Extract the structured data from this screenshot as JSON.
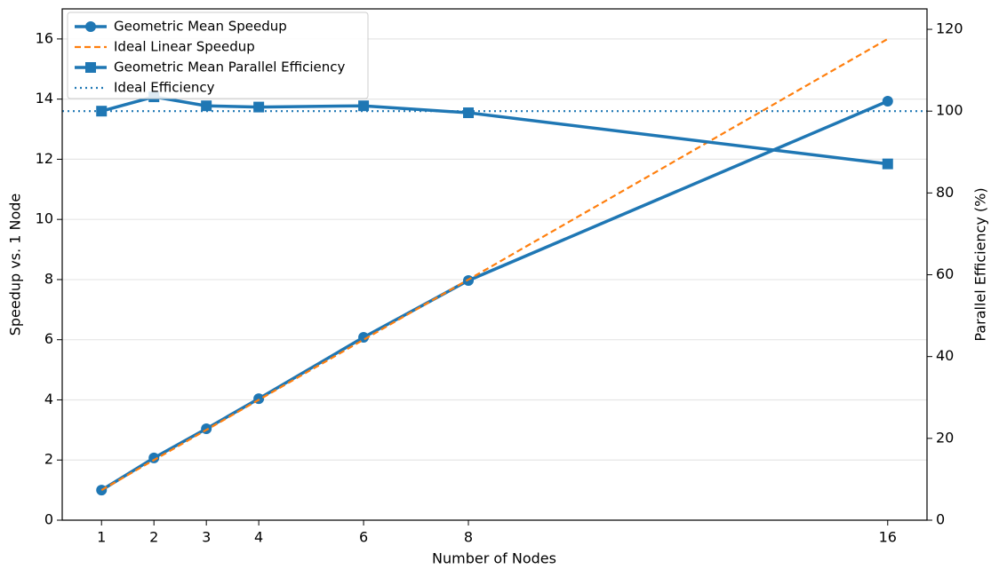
{
  "chart_data": {
    "type": "line",
    "x_label": "Number of Nodes",
    "y_label": "Speedup vs. 1 Node",
    "y2_label": "Parallel Efficiency (%)",
    "x": [
      1,
      2,
      3,
      4,
      6,
      8,
      16
    ],
    "xlim": [
      0.25,
      16.75
    ],
    "xticks": [
      1,
      2,
      3,
      4,
      6,
      8,
      16
    ],
    "ylim": [
      0,
      17
    ],
    "yticks": [
      0,
      2,
      4,
      6,
      8,
      10,
      12,
      14,
      16
    ],
    "y2lim": [
      0,
      125
    ],
    "y2ticks": [
      0,
      20,
      40,
      60,
      80,
      100,
      120
    ],
    "grid": true,
    "legend": "upper left",
    "series": [
      {
        "name": "Geometric Mean Speedup",
        "color": "#1f77b4",
        "linestyle": "solid",
        "marker": "circle",
        "values": [
          1,
          2.07,
          3.04,
          4.04,
          6.08,
          7.97,
          13.93
        ]
      },
      {
        "name": "Ideal Linear Speedup",
        "color": "#ff7f0e",
        "linestyle": "dashed",
        "values": [
          1,
          2,
          3,
          4,
          6,
          8,
          16
        ]
      },
      {
        "name": "Geometric Mean Parallel Efficiency",
        "color": "#1f77b4",
        "linestyle": "solid",
        "marker": "square",
        "axis": "y2",
        "values": [
          100,
          103.5,
          101.3,
          101,
          101.3,
          99.6,
          87.1
        ]
      },
      {
        "name": "Ideal Efficiency",
        "color": "#1f77b4",
        "linestyle": "dotted",
        "axis": "y2",
        "hline": true,
        "value": 100
      }
    ]
  }
}
